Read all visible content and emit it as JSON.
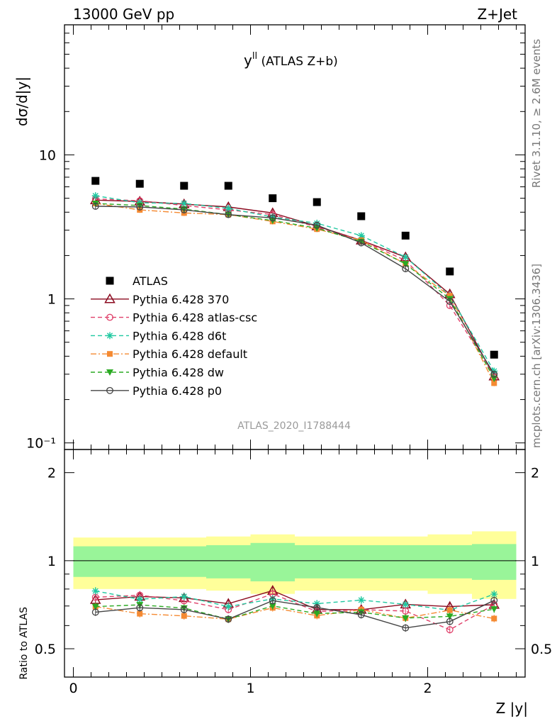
{
  "header": {
    "left": "13000 GeV pp",
    "right": "Z+Jet"
  },
  "plot_title_main": "y",
  "plot_title_sup": "ll",
  "plot_title_rest": " (ATLAS Z+b)",
  "watermark": "ATLAS_2020_I1788444",
  "side_label_top": "Rivet 3.1.10, ≥ 2.6M events",
  "side_label_bottom": "mcplots.cern.ch [arXiv:1306.3436]",
  "ylabel_main": "dσ/d|y|",
  "ylabel_ratio": "Ratio to ATLAS",
  "xlabel": "Z |y|",
  "main_ticks": [
    "10",
    "1",
    "10⁻¹"
  ],
  "ratio_ticks": [
    "2",
    "1",
    "0.5"
  ],
  "x_ticks": [
    "0",
    "1",
    "2"
  ],
  "chart_data": {
    "type": "scatter",
    "title": "y^ll (ATLAS Z+b)",
    "xlabel": "Z |y|",
    "ylabel": "dσ/d|y|",
    "xlim": [
      -0.05,
      2.55
    ],
    "ylim": [
      0.09,
      80
    ],
    "yscale": "log",
    "ratio_ylim": [
      0.4,
      2.4
    ],
    "ratio_yscale": "log",
    "x": [
      0.125,
      0.375,
      0.625,
      0.875,
      1.125,
      1.375,
      1.625,
      1.875,
      2.125,
      2.375
    ],
    "bin_edges": [
      0,
      0.25,
      0.5,
      0.75,
      1.0,
      1.25,
      1.5,
      1.75,
      2.0,
      2.25,
      2.5
    ],
    "band_inner_rel": [
      0.12,
      0.12,
      0.12,
      0.13,
      0.15,
      0.13,
      0.13,
      0.13,
      0.13,
      0.14
    ],
    "band_outer_rel": [
      0.2,
      0.2,
      0.2,
      0.21,
      0.23,
      0.21,
      0.21,
      0.21,
      0.23,
      0.26
    ],
    "series": [
      {
        "name": "ATLAS",
        "color": "#000000",
        "marker": "square",
        "dash": "",
        "values": [
          6.6,
          6.3,
          6.1,
          6.1,
          5.0,
          4.7,
          3.75,
          2.75,
          1.55,
          0.41
        ]
      },
      {
        "name": "Pythia 6.428 370",
        "color": "#8b0a1f",
        "marker": "triangle-open",
        "dash": "",
        "values": [
          4.85,
          4.75,
          4.55,
          4.35,
          3.95,
          3.2,
          2.55,
          1.95,
          1.08,
          0.29
        ]
      },
      {
        "name": "Pythia 6.428 atlas-csc",
        "color": "#e0406a",
        "marker": "circle-open",
        "dash": "6 4",
        "values": [
          4.95,
          4.8,
          4.45,
          4.15,
          3.85,
          3.15,
          2.55,
          1.85,
          0.9,
          0.29
        ]
      },
      {
        "name": "Pythia 6.428 d6t",
        "color": "#1ec8a0",
        "marker": "star",
        "dash": "6 4",
        "values": [
          5.2,
          4.65,
          4.6,
          4.25,
          3.7,
          3.35,
          2.75,
          1.95,
          1.05,
          0.315
        ]
      },
      {
        "name": "Pythia 6.428 default",
        "color": "#f58a32",
        "marker": "square-small",
        "dash": "8 3 2 3",
        "values": [
          4.6,
          4.15,
          3.95,
          3.85,
          3.45,
          3.05,
          2.55,
          1.75,
          1.05,
          0.26
        ]
      },
      {
        "name": "Pythia 6.428 dw",
        "color": "#2aaa22",
        "marker": "triangle-down",
        "dash": "6 4",
        "values": [
          4.6,
          4.45,
          4.2,
          3.85,
          3.5,
          3.1,
          2.5,
          1.75,
          1.0,
          0.28
        ]
      },
      {
        "name": "Pythia 6.428 p0",
        "color": "#444444",
        "marker": "circle-open",
        "dash": "",
        "values": [
          4.4,
          4.35,
          4.15,
          3.85,
          3.65,
          3.25,
          2.45,
          1.62,
          0.96,
          0.3
        ]
      }
    ]
  }
}
